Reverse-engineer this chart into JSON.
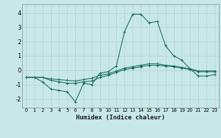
{
  "xlabel": "Humidex (Indice chaleur)",
  "ylabel": "",
  "background_color": "#c8e8e8",
  "grid_color": "#b8d8d8",
  "line_color": "#1a6b5a",
  "xlim": [
    -0.5,
    23.5
  ],
  "ylim": [
    -2.6,
    4.6
  ],
  "xticks": [
    0,
    1,
    2,
    3,
    4,
    5,
    6,
    7,
    8,
    9,
    10,
    11,
    12,
    13,
    14,
    15,
    16,
    17,
    18,
    19,
    20,
    21,
    22,
    23
  ],
  "yticks": [
    -2,
    -1,
    0,
    1,
    2,
    3,
    4
  ],
  "series": [
    {
      "x": [
        0,
        1,
        2,
        3,
        4,
        5,
        6,
        7,
        8,
        9,
        10,
        11,
        12,
        13,
        14,
        15,
        16,
        17,
        18,
        19,
        20,
        21,
        22,
        23
      ],
      "y": [
        -0.5,
        -0.5,
        -0.8,
        -1.3,
        -1.4,
        -1.5,
        -2.2,
        -0.9,
        -1.0,
        -0.2,
        -0.1,
        0.3,
        2.7,
        3.9,
        3.9,
        3.3,
        3.4,
        1.7,
        1.0,
        0.7,
        0.1,
        -0.4,
        -0.4,
        -0.3
      ]
    },
    {
      "x": [
        0,
        1,
        2,
        3,
        4,
        5,
        6,
        7,
        8,
        9,
        10,
        11,
        12,
        13,
        14,
        15,
        16,
        17,
        18,
        19,
        20,
        21,
        22,
        23
      ],
      "y": [
        -0.5,
        -0.5,
        -0.5,
        -0.7,
        -0.8,
        -0.9,
        -0.9,
        -0.8,
        -0.75,
        -0.5,
        -0.35,
        -0.15,
        0.05,
        0.15,
        0.25,
        0.35,
        0.35,
        0.3,
        0.25,
        0.15,
        0.05,
        -0.1,
        -0.1,
        -0.1
      ]
    },
    {
      "x": [
        0,
        1,
        2,
        3,
        4,
        5,
        6,
        7,
        8,
        9,
        10,
        11,
        12,
        13,
        14,
        15,
        16,
        17,
        18,
        19,
        20,
        21,
        22,
        23
      ],
      "y": [
        -0.5,
        -0.5,
        -0.5,
        -0.6,
        -0.65,
        -0.7,
        -0.75,
        -0.65,
        -0.55,
        -0.35,
        -0.25,
        -0.05,
        0.15,
        0.25,
        0.35,
        0.45,
        0.45,
        0.35,
        0.3,
        0.2,
        0.1,
        -0.05,
        -0.05,
        -0.05
      ]
    }
  ]
}
